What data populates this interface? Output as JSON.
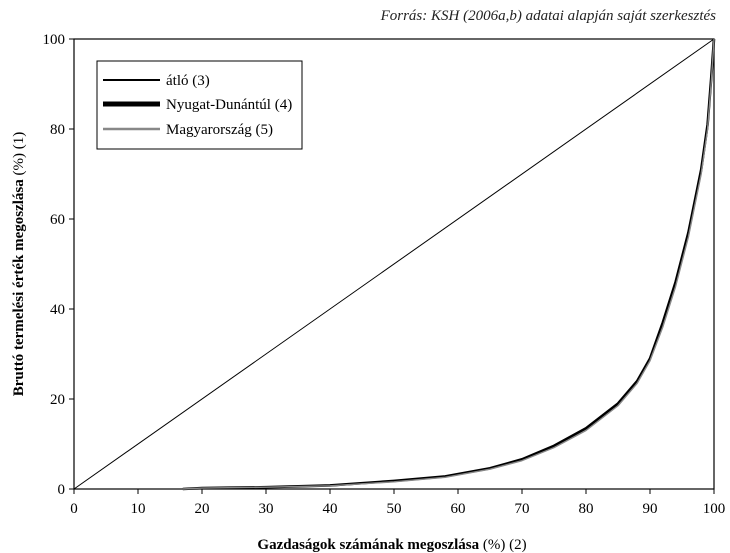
{
  "source": "Forrás: KSH (2006a,b) adatai alapján saját szerkesztés",
  "chart_data": {
    "type": "line",
    "xlabel_bold": "Gazdaságok számának megoszlása",
    "xlabel_suffix": " (%) (2)",
    "ylabel_bold": "Bruttó termelési érték megoszlása",
    "ylabel_suffix": " (%) (1)",
    "xlim": [
      0,
      100
    ],
    "ylim": [
      0,
      100
    ],
    "x_ticks": [
      "0",
      "10",
      "20",
      "30",
      "40",
      "50",
      "60",
      "70",
      "80",
      "90",
      "100"
    ],
    "y_ticks": [
      "0",
      "20",
      "40",
      "60",
      "80",
      "100"
    ],
    "grid": false,
    "legend_position": "top-left",
    "series": [
      {
        "name": "átló (3)",
        "color": "#000000",
        "points": [
          [
            0,
            0
          ],
          [
            100,
            100
          ]
        ]
      },
      {
        "name": "Nyugat-Dunántúl (4)",
        "color": "#000000",
        "points": [
          [
            17,
            0
          ],
          [
            20,
            0.2
          ],
          [
            30,
            0.4
          ],
          [
            40,
            0.8
          ],
          [
            50,
            1.8
          ],
          [
            58,
            2.8
          ],
          [
            65,
            4.6
          ],
          [
            70,
            6.6
          ],
          [
            75,
            9.6
          ],
          [
            80,
            13.5
          ],
          [
            85,
            19
          ],
          [
            88,
            24
          ],
          [
            90,
            29
          ],
          [
            92,
            37
          ],
          [
            94,
            46
          ],
          [
            96,
            57
          ],
          [
            98,
            71
          ],
          [
            99,
            81
          ],
          [
            99.6,
            92
          ],
          [
            100,
            100
          ]
        ]
      },
      {
        "name": "Magyarország (5)",
        "color": "#888888",
        "points": [
          [
            17,
            0
          ],
          [
            20,
            0.2
          ],
          [
            30,
            0.4
          ],
          [
            40,
            0.7
          ],
          [
            50,
            1.6
          ],
          [
            58,
            2.6
          ],
          [
            65,
            4.4
          ],
          [
            70,
            6.3
          ],
          [
            75,
            9.2
          ],
          [
            80,
            13
          ],
          [
            85,
            18.5
          ],
          [
            88,
            23.5
          ],
          [
            90,
            28.5
          ],
          [
            92,
            36
          ],
          [
            94,
            45
          ],
          [
            96,
            56
          ],
          [
            98,
            70
          ],
          [
            99,
            80
          ],
          [
            99.6,
            91
          ],
          [
            100,
            100
          ]
        ]
      }
    ]
  }
}
